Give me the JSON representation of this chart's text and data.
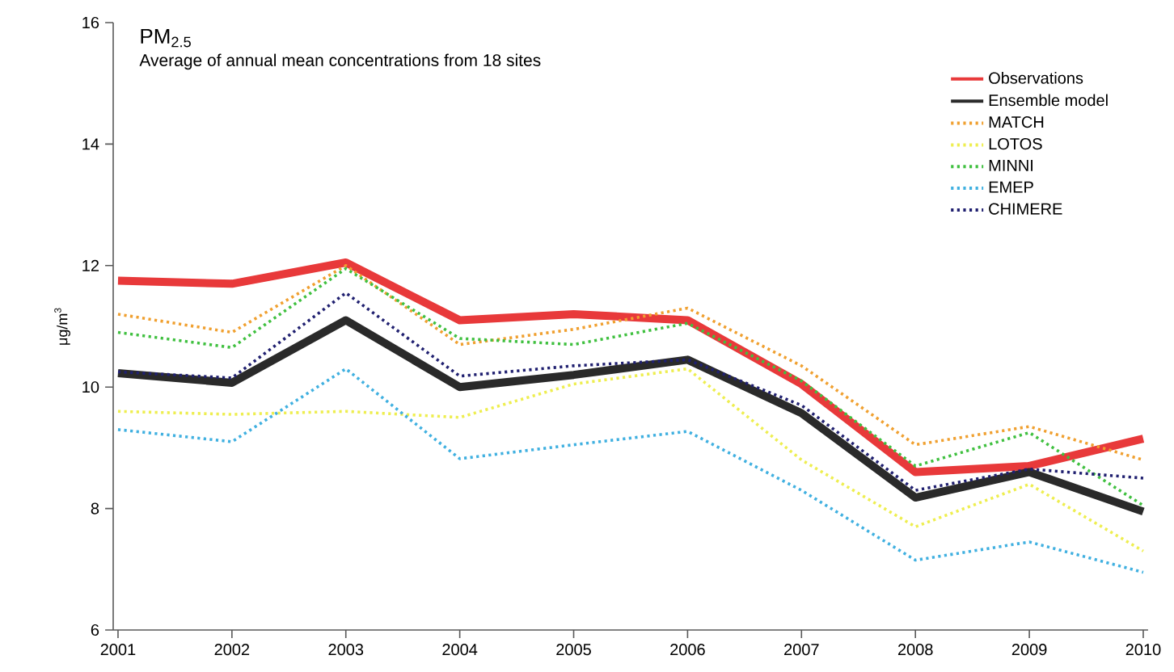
{
  "chart_data": {
    "type": "line",
    "title": "PM$_{2.5}$",
    "subtitle": "Average of annual mean concentrations from 18 sites",
    "ylabel": "μg/m$^{3}$",
    "x": [
      2001,
      2002,
      2003,
      2004,
      2005,
      2006,
      2007,
      2008,
      2009,
      2010
    ],
    "xlim": [
      2001,
      2010
    ],
    "xticks": [
      2001,
      2002,
      2003,
      2004,
      2005,
      2006,
      2007,
      2008,
      2009,
      2010
    ],
    "ylim": [
      6,
      16
    ],
    "yticks": [
      6,
      8,
      10,
      12,
      14,
      16
    ],
    "grid": false,
    "legend": "top right",
    "series": [
      {
        "name": "Observations",
        "color": "#e8393a",
        "line_style": "solid",
        "values": [
          11.75,
          11.7,
          12.05,
          11.1,
          11.2,
          11.1,
          10.05,
          8.6,
          8.7,
          9.15
        ]
      },
      {
        "name": "Ensemble model",
        "color": "#2a2a2a",
        "line_style": "solid",
        "values": [
          10.23,
          10.07,
          11.1,
          10.0,
          10.2,
          10.45,
          9.57,
          8.18,
          8.6,
          7.95
        ]
      },
      {
        "name": "MATCH",
        "color": "#f0a030",
        "line_style": "dotted",
        "values": [
          11.2,
          10.9,
          12.0,
          10.7,
          10.95,
          11.3,
          10.35,
          9.05,
          9.35,
          8.8
        ]
      },
      {
        "name": "LOTOS",
        "color": "#eeee50",
        "line_style": "dotted",
        "values": [
          9.6,
          9.55,
          9.6,
          9.5,
          10.05,
          10.3,
          8.8,
          7.7,
          8.4,
          7.3
        ]
      },
      {
        "name": "MINNI",
        "color": "#40c040",
        "line_style": "dotted",
        "values": [
          10.9,
          10.65,
          11.95,
          10.8,
          10.7,
          11.05,
          10.1,
          8.7,
          9.25,
          8.05
        ]
      },
      {
        "name": "EMEP",
        "color": "#40b0e0",
        "line_style": "dotted",
        "values": [
          9.3,
          9.1,
          10.3,
          8.82,
          9.05,
          9.27,
          8.3,
          7.15,
          7.45,
          6.95
        ]
      },
      {
        "name": "CHIMERE",
        "color": "#202070",
        "line_style": "dotted",
        "values": [
          10.25,
          10.15,
          11.55,
          10.18,
          10.35,
          10.45,
          9.7,
          8.3,
          8.65,
          8.5
        ]
      }
    ]
  }
}
